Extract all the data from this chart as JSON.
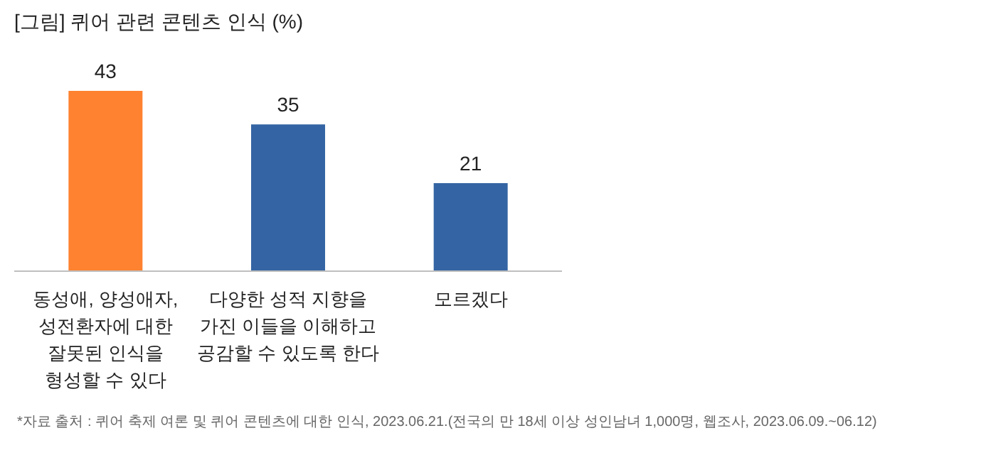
{
  "chart_data": {
    "type": "bar",
    "title": "[그림] 퀴어 관련 콘텐츠 인식 (%)",
    "categories": [
      "동성애, 양성애자,\n성전환자에 대한\n잘못된 인식을\n형성할 수 있다",
      "다양한 성적 지향을\n가진 이들을 이해하고\n공감할 수 있도록 한다",
      "모르겠다"
    ],
    "values": [
      43,
      35,
      21
    ],
    "colors": [
      "#fe8230",
      "#3464a3",
      "#3464a3"
    ],
    "data_labels": true,
    "annotations": [
      "*자료 출처 : 퀴어 축제 여론 및 퀴어 콘텐츠에 대한 인식, 2023.06.21.(전국의 만 18세 이상 성인남녀 1,000명, 웹조사, 2023.06.09.~06.12)"
    ]
  }
}
